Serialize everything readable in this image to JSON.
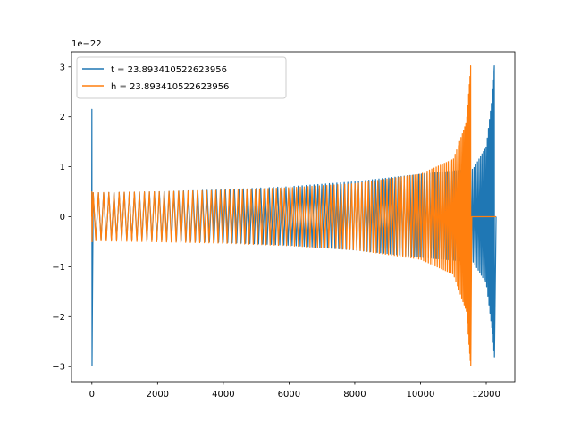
{
  "chart_data": {
    "type": "line",
    "title": "",
    "xlabel": "",
    "ylabel": "",
    "y_offset_text": "1e−22",
    "y_scale_factor": 1e-22,
    "xlim": [
      -620,
      12870
    ],
    "ylim": [
      -3.3,
      3.3
    ],
    "xticks": [
      0,
      2000,
      4000,
      6000,
      8000,
      10000,
      12000
    ],
    "xtick_labels": [
      "0",
      "2000",
      "4000",
      "6000",
      "8000",
      "10000",
      "12000"
    ],
    "yticks": [
      -3,
      -2,
      -1,
      0,
      1,
      2,
      3
    ],
    "ytick_labels": [
      "−3",
      "−2",
      "−1",
      "0",
      "1",
      "2",
      "3"
    ],
    "grid": false,
    "legend_position": "upper left",
    "series": [
      {
        "name": "t = 23.893410522623956",
        "color": "#1f77b4",
        "description": "chirp waveform; initial spike at x=0 (+2.15 / -2.98), envelope grows from ~0.48 to ~3.0 near x=12250 then drops to 0",
        "start_spike": {
          "x": 0,
          "max": 2.15,
          "min": -2.98
        },
        "envelope": [
          [
            60,
            0.48
          ],
          [
            2000,
            0.5
          ],
          [
            4000,
            0.54
          ],
          [
            6000,
            0.6
          ],
          [
            8000,
            0.7
          ],
          [
            10000,
            0.85
          ],
          [
            11600,
            0.95
          ],
          [
            12000,
            1.4
          ],
          [
            12200,
            2.5
          ],
          [
            12250,
            3.02
          ]
        ],
        "peak": {
          "x": 12250,
          "max": 3.02,
          "min": -2.82
        },
        "end_x": 12300
      },
      {
        "name": "h = 23.893410522623956",
        "color": "#ff7f0e",
        "description": "chirp waveform; envelope grows from ~0.48 to ~3.0 near x=11530, then flat 0 to x=12300",
        "start_spike": {
          "x": 0,
          "max": 0.5,
          "min": -0.5
        },
        "envelope": [
          [
            0,
            0.48
          ],
          [
            2000,
            0.5
          ],
          [
            4000,
            0.53
          ],
          [
            6000,
            0.58
          ],
          [
            8000,
            0.66
          ],
          [
            10000,
            0.85
          ],
          [
            11000,
            1.15
          ],
          [
            11400,
            1.9
          ],
          [
            11530,
            3.02
          ]
        ],
        "peak": {
          "x": 11530,
          "max": 3.02,
          "min": -2.98
        },
        "end_x": 11560,
        "flat_until": 12300
      }
    ]
  }
}
